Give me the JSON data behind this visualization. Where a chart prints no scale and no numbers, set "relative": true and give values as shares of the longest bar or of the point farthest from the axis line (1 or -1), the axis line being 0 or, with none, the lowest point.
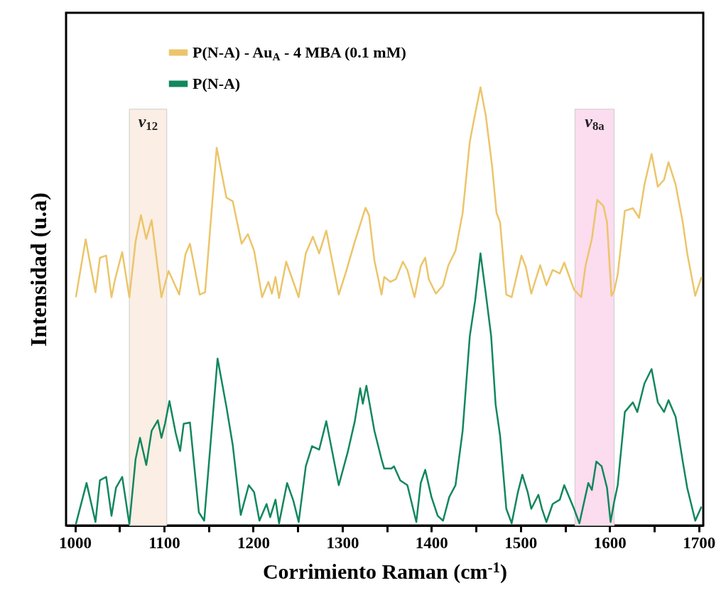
{
  "chart_data": {
    "type": "line",
    "relative": true,
    "xlabel": "Corrimiento Raman (cm$^{-1}$)",
    "ylabel": "Intensidad (u.a)",
    "legend": "top left",
    "xlim": [
      990,
      1705
    ],
    "xticks": [
      1000,
      {
        "value": 1050,
        "label": null
      },
      1100,
      {
        "value": 1150,
        "label": null
      },
      1200,
      {
        "value": 1250,
        "label": null
      },
      1300,
      {
        "value": 1350,
        "label": null
      },
      1400,
      {
        "value": 1450,
        "label": null
      },
      1500,
      {
        "value": 1550,
        "label": null
      },
      1600,
      {
        "value": 1650,
        "label": null
      },
      1700
    ],
    "bands": [
      {
        "axis": "x",
        "from": 1061,
        "to": 1103,
        "label": "v$_{12}$",
        "color": "#fbeee4"
      },
      {
        "axis": "x",
        "from": 1561,
        "to": 1605,
        "label": "v$_{8a}$",
        "color": "#fcdcef"
      }
    ],
    "series": [
      {
        "name": "P(N-A) - Au$_{A}$ - 4 MBA (0.1 mM)",
        "color": "#ecc56a",
        "x": [
          1001,
          1012,
          1023,
          1028,
          1035,
          1041,
          1045,
          1053,
          1061,
          1068,
          1074,
          1080,
          1086,
          1097,
          1105,
          1117,
          1124,
          1129,
          1140,
          1146,
          1159,
          1170,
          1177,
          1187,
          1194,
          1201,
          1210,
          1217,
          1221,
          1225,
          1229,
          1237,
          1251,
          1259,
          1267,
          1274,
          1282,
          1296,
          1304,
          1314,
          1326,
          1330,
          1336,
          1344,
          1347,
          1354,
          1360,
          1368,
          1373,
          1381,
          1388,
          1393,
          1397,
          1405,
          1413,
          1419,
          1427,
          1435,
          1443,
          1448,
          1455,
          1461,
          1468,
          1473,
          1477,
          1484,
          1490,
          1501,
          1506,
          1512,
          1522,
          1529,
          1536,
          1544,
          1549,
          1560,
          1568,
          1573,
          1580,
          1586,
          1593,
          1597,
          1602,
          1605,
          1609,
          1617,
          1626,
          1633,
          1639,
          1647,
          1654,
          1661,
          1666,
          1674,
          1682,
          1687,
          1696,
          1703
        ],
        "values": [
          0.521,
          0.653,
          0.532,
          0.611,
          0.616,
          0.521,
          0.562,
          0.624,
          0.521,
          0.648,
          0.708,
          0.654,
          0.697,
          0.521,
          0.581,
          0.527,
          0.619,
          0.643,
          0.527,
          0.532,
          0.862,
          0.748,
          0.74,
          0.643,
          0.665,
          0.627,
          0.521,
          0.556,
          0.529,
          0.567,
          0.519,
          0.602,
          0.521,
          0.621,
          0.659,
          0.621,
          0.673,
          0.527,
          0.578,
          0.648,
          0.725,
          0.708,
          0.605,
          0.527,
          0.567,
          0.556,
          0.562,
          0.602,
          0.583,
          0.521,
          0.592,
          0.611,
          0.562,
          0.529,
          0.548,
          0.594,
          0.627,
          0.713,
          0.875,
          0.929,
          1,
          0.935,
          0.821,
          0.713,
          0.692,
          0.527,
          0.521,
          0.616,
          0.589,
          0.529,
          0.594,
          0.548,
          0.583,
          0.575,
          0.6,
          0.538,
          0.521,
          0.594,
          0.654,
          0.743,
          0.729,
          0.692,
          0.524,
          0.535,
          0.573,
          0.718,
          0.724,
          0.702,
          0.778,
          0.848,
          0.773,
          0.789,
          0.829,
          0.778,
          0.692,
          0.621,
          0.524,
          0.567
        ]
      },
      {
        "name": "P(N-A)",
        "color": "#12875d",
        "x": [
          1001,
          1013,
          1023,
          1028,
          1035,
          1041,
          1046,
          1053,
          1061,
          1068,
          1073,
          1080,
          1086,
          1093,
          1097,
          1101,
          1106,
          1113,
          1118,
          1122,
          1129,
          1139,
          1145,
          1160,
          1170,
          1177,
          1186,
          1195,
          1201,
          1207,
          1215,
          1219,
          1225,
          1229,
          1238,
          1245,
          1251,
          1259,
          1266,
          1274,
          1282,
          1296,
          1306,
          1314,
          1320,
          1323,
          1327,
          1336,
          1344,
          1347,
          1355,
          1358,
          1365,
          1373,
          1383,
          1388,
          1393,
          1400,
          1407,
          1413,
          1420,
          1427,
          1435,
          1443,
          1449,
          1455,
          1461,
          1467,
          1472,
          1477,
          1484,
          1490,
          1497,
          1502,
          1508,
          1512,
          1520,
          1524,
          1529,
          1536,
          1544,
          1549,
          1560,
          1566,
          1576,
          1580,
          1585,
          1591,
          1597,
          1601,
          1605,
          1609,
          1617,
          1626,
          1631,
          1639,
          1647,
          1654,
          1661,
          1666,
          1674,
          1682,
          1687,
          1696,
          1703
        ],
        "values": [
          0.003,
          0.097,
          0.008,
          0.103,
          0.111,
          0.022,
          0.086,
          0.111,
          0.003,
          0.151,
          0.2,
          0.138,
          0.216,
          0.24,
          0.2,
          0.232,
          0.284,
          0.211,
          0.17,
          0.232,
          0.235,
          0.03,
          0.011,
          0.381,
          0.27,
          0.184,
          0.024,
          0.092,
          0.076,
          0.011,
          0.049,
          0.019,
          0.059,
          0.005,
          0.097,
          0.057,
          0.008,
          0.135,
          0.181,
          0.173,
          0.238,
          0.092,
          0.167,
          0.238,
          0.313,
          0.278,
          0.319,
          0.216,
          0.151,
          0.13,
          0.13,
          0.135,
          0.103,
          0.092,
          0.008,
          0.097,
          0.127,
          0.065,
          0.022,
          0.011,
          0.065,
          0.092,
          0.216,
          0.432,
          0.513,
          0.621,
          0.529,
          0.432,
          0.276,
          0.205,
          0.038,
          0.005,
          0.076,
          0.116,
          0.076,
          0.038,
          0.07,
          0.038,
          0.008,
          0.049,
          0.059,
          0.092,
          0.038,
          0.005,
          0.097,
          0.081,
          0.146,
          0.135,
          0.086,
          0.008,
          0.054,
          0.092,
          0.259,
          0.281,
          0.259,
          0.324,
          0.357,
          0.281,
          0.259,
          0.286,
          0.248,
          0.146,
          0.086,
          0.011,
          0.043
        ]
      }
    ]
  }
}
